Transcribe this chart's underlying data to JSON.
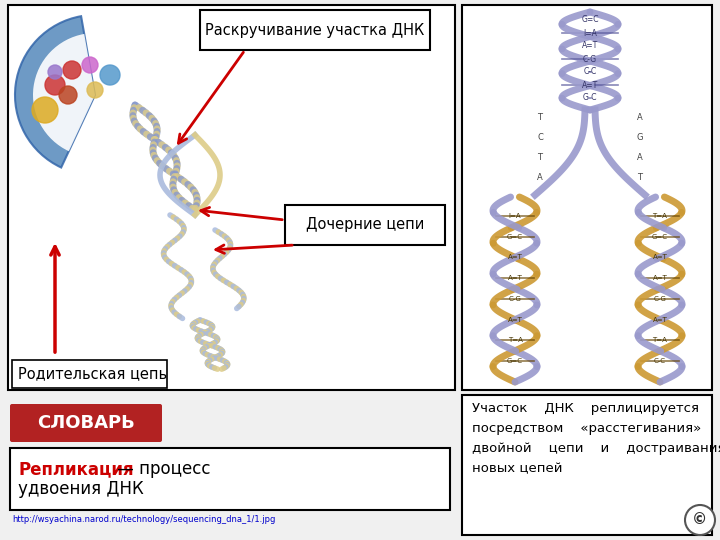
{
  "bg_color": "#f0f0f0",
  "title_label1": "Раскручивание участка ДНК",
  "title_label2": "Дочерние цепи",
  "label_parent": "Родительская цепь",
  "slovar_text": "СЛОВАРЬ",
  "slovar_bg": "#b22222",
  "slovar_fg": "#ffffff",
  "replikaciya_word": "Репликация",
  "replikaciya_color": "#cc0000",
  "url_text": "http://wsyachina.narod.ru/technology/sequencing_dna_1/1.jpg",
  "url_color": "#0000cc",
  "right_text_line1": "Участок    ДНК    реплицируется",
  "right_text_line2": "посредством    «расстегивания»",
  "right_text_line3": "двойной    цепи    и    достраивания",
  "right_text_line4": "новых цепей",
  "def_line1": " — процесс",
  "def_line2": "удвоения ДНК",
  "box_color": "#000000",
  "arrow_color": "#cc0000"
}
